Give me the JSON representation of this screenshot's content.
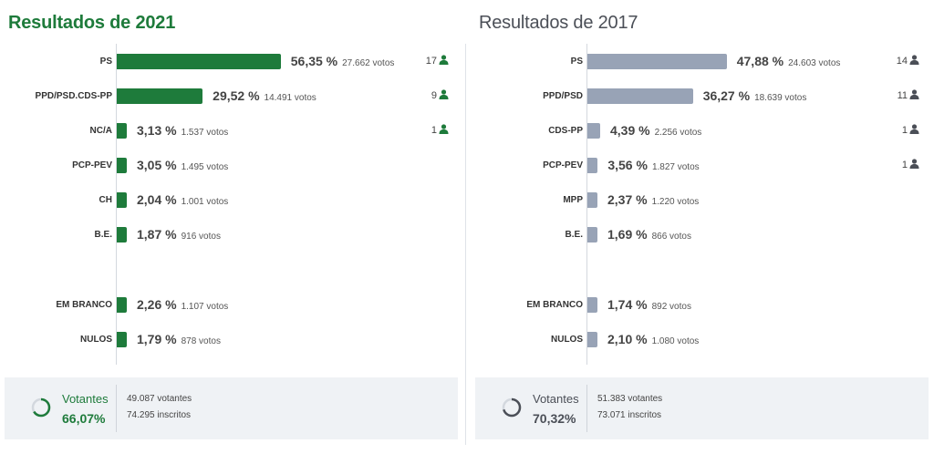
{
  "colors": {
    "bar_2021": "#1e7b3b",
    "bar_2017": "#98a3b6",
    "accent_2021": "#1e7b3b",
    "accent_2017": "#4b4f57"
  },
  "panels": [
    {
      "id": "2021",
      "title": "Resultados de 2021",
      "seat_icon": "person-icon",
      "chart_data": {
        "type": "bar",
        "orientation": "horizontal",
        "title": "Resultados de 2021",
        "categories": [
          "PS",
          "PPD/PSD.CDS-PP",
          "NC/A",
          "PCP-PEV",
          "CH",
          "B.E.",
          "EM BRANCO",
          "NULOS"
        ],
        "values": [
          56.35,
          29.52,
          3.13,
          3.05,
          2.04,
          1.87,
          2.26,
          1.79
        ],
        "xlim": [
          0,
          100
        ],
        "rows": [
          {
            "party": "PS",
            "value": 56.35,
            "pct_label": "56,35 %",
            "votes_label": "27.662 votos",
            "seats": "17"
          },
          {
            "party": "PPD/PSD.CDS-PP",
            "value": 29.52,
            "pct_label": "29,52 %",
            "votes_label": "14.491 votos",
            "seats": "9"
          },
          {
            "party": "NC/A",
            "value": 3.13,
            "pct_label": "3,13 %",
            "votes_label": "1.537 votos",
            "seats": "1"
          },
          {
            "party": "PCP-PEV",
            "value": 3.05,
            "pct_label": "3,05 %",
            "votes_label": "1.495 votos",
            "seats": ""
          },
          {
            "party": "CH",
            "value": 2.04,
            "pct_label": "2,04 %",
            "votes_label": "1.001 votos",
            "seats": ""
          },
          {
            "party": "B.E.",
            "value": 1.87,
            "pct_label": "1,87 %",
            "votes_label": "916 votos",
            "seats": ""
          },
          {
            "party": "EM BRANCO",
            "value": 2.26,
            "pct_label": "2,26 %",
            "votes_label": "1.107 votos",
            "seats": ""
          },
          {
            "party": "NULOS",
            "value": 1.79,
            "pct_label": "1,79 %",
            "votes_label": "878 votos",
            "seats": ""
          }
        ]
      },
      "turnout": {
        "label": "Votantes",
        "value": 66.07,
        "pct_label": "66,07%",
        "voters_label": "49.087 votantes",
        "registered_label": "74.295 inscritos"
      }
    },
    {
      "id": "2017",
      "title": "Resultados de 2017",
      "seat_icon": "person-icon",
      "chart_data": {
        "type": "bar",
        "orientation": "horizontal",
        "title": "Resultados de 2017",
        "categories": [
          "PS",
          "PPD/PSD",
          "CDS-PP",
          "PCP-PEV",
          "MPP",
          "B.E.",
          "EM BRANCO",
          "NULOS"
        ],
        "values": [
          47.88,
          36.27,
          4.39,
          3.56,
          2.37,
          1.69,
          1.74,
          2.1
        ],
        "xlim": [
          0,
          100
        ],
        "rows": [
          {
            "party": "PS",
            "value": 47.88,
            "pct_label": "47,88 %",
            "votes_label": "24.603 votos",
            "seats": "14"
          },
          {
            "party": "PPD/PSD",
            "value": 36.27,
            "pct_label": "36,27 %",
            "votes_label": "18.639 votos",
            "seats": "11"
          },
          {
            "party": "CDS-PP",
            "value": 4.39,
            "pct_label": "4,39 %",
            "votes_label": "2.256 votos",
            "seats": "1"
          },
          {
            "party": "PCP-PEV",
            "value": 3.56,
            "pct_label": "3,56 %",
            "votes_label": "1.827 votos",
            "seats": "1"
          },
          {
            "party": "MPP",
            "value": 2.37,
            "pct_label": "2,37 %",
            "votes_label": "1.220 votos",
            "seats": ""
          },
          {
            "party": "B.E.",
            "value": 1.69,
            "pct_label": "1,69 %",
            "votes_label": "866 votos",
            "seats": ""
          },
          {
            "party": "EM BRANCO",
            "value": 1.74,
            "pct_label": "1,74 %",
            "votes_label": "892 votos",
            "seats": ""
          },
          {
            "party": "NULOS",
            "value": 2.1,
            "pct_label": "2,10 %",
            "votes_label": "1.080 votos",
            "seats": ""
          }
        ]
      },
      "turnout": {
        "label": "Votantes",
        "value": 70.32,
        "pct_label": "70,32%",
        "voters_label": "51.383 votantes",
        "registered_label": "73.071 inscritos"
      }
    }
  ]
}
